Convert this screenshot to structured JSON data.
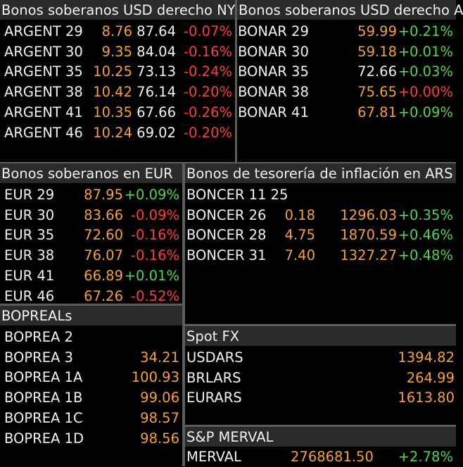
{
  "usd_ny": {
    "title": "Bonos soberanos USD derecho NY",
    "rows": [
      {
        "name": "ARGENT 29",
        "yield": "8.76",
        "price": "87.64",
        "change": "-0.07%"
      },
      {
        "name": "ARGENT 30",
        "yield": "9.35",
        "price": "84.04",
        "change": "-0.16%"
      },
      {
        "name": "ARGENT 35",
        "yield": "10.25",
        "price": "73.13",
        "change": "-0.24%"
      },
      {
        "name": "ARGENT 38",
        "yield": "10.42",
        "price": "76.14",
        "change": "-0.20%"
      },
      {
        "name": "ARGENT 41",
        "yield": "10.35",
        "price": "67.66",
        "change": "-0.26%"
      },
      {
        "name": "ARGENT 46",
        "yield": "10.24",
        "price": "69.02",
        "change": "-0.20%"
      }
    ]
  },
  "usd_ar": {
    "title": "Bonos soberanos USD derecho A",
    "rows": [
      {
        "name": "BONAR 29",
        "price": "59.99",
        "change": "+0.21%"
      },
      {
        "name": "BONAR 30",
        "price": "59.18",
        "change": "+0.01%"
      },
      {
        "name": "BONAR 35",
        "price": "72.66",
        "change": "+0.03%"
      },
      {
        "name": "BONAR 38",
        "price": "75.65",
        "change": "+0.00%"
      },
      {
        "name": "BONAR 41",
        "price": "67.81",
        "change": "+0.09%"
      }
    ]
  },
  "eur": {
    "title": "Bonos soberanos en EUR",
    "rows": [
      {
        "name": "EUR 29",
        "price": "87.95",
        "change": "+0.09%"
      },
      {
        "name": "EUR 30",
        "price": "83.66",
        "change": "-0.09%"
      },
      {
        "name": "EUR 35",
        "price": "72.60",
        "change": "-0.16%"
      },
      {
        "name": "EUR 38",
        "price": "76.07",
        "change": "-0.16%"
      },
      {
        "name": "EUR 41",
        "price": "66.89",
        "change": "+0.01%"
      },
      {
        "name": "EUR 46",
        "price": "67.26",
        "change": "-0.52%"
      }
    ]
  },
  "boncer": {
    "title": "Bonos de tesorería de inflación en ARS",
    "rows": [
      {
        "name": "BONCER 11 25",
        "yield": "",
        "price": "",
        "change": ""
      },
      {
        "name": "BONCER 26",
        "yield": "0.18",
        "price": "1296.03",
        "change": "+0.35%"
      },
      {
        "name": "BONCER 28",
        "yield": "4.75",
        "price": "1870.59",
        "change": "+0.46%"
      },
      {
        "name": "BONCER 31",
        "yield": "7.40",
        "price": "1327.27",
        "change": "+0.48%"
      }
    ]
  },
  "bopreal": {
    "title": "BOPREALs",
    "rows": [
      {
        "name": "BOPREA 2",
        "price": ""
      },
      {
        "name": "BOPREA 3",
        "price": "34.21"
      },
      {
        "name": "BOPREA 1A",
        "price": "100.93"
      },
      {
        "name": "BOPREA 1B",
        "price": "99.06"
      },
      {
        "name": "BOPREA 1C",
        "price": "98.57"
      },
      {
        "name": "BOPREA 1D",
        "price": "98.56"
      }
    ]
  },
  "spotfx": {
    "title": "Spot FX",
    "rows": [
      {
        "name": "USDARS",
        "price": "1394.82"
      },
      {
        "name": "BRLARS",
        "price": "264.99"
      },
      {
        "name": "EURARS",
        "price": "1613.80"
      }
    ]
  },
  "merval": {
    "title": "S&P MERVAL",
    "name": "MERVAL",
    "price": "2768681.50",
    "change": "+2.78%"
  },
  "colors": {
    "background": "#000000",
    "header": "#2b2b2b",
    "amber": "#f5a133",
    "negative": "#ff3e3e",
    "positive": "#4fd64a"
  }
}
